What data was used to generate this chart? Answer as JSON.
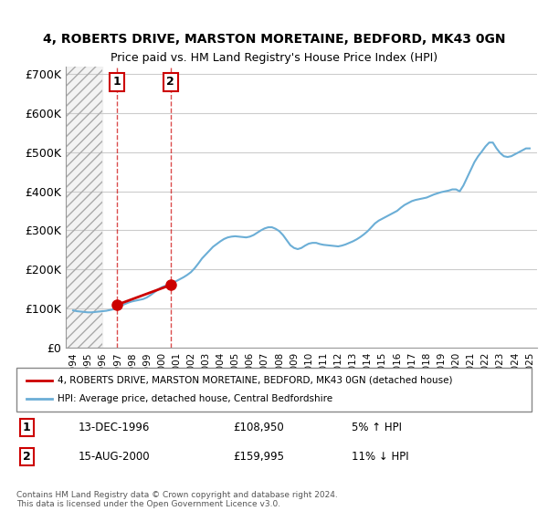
{
  "title": "4, ROBERTS DRIVE, MARSTON MORETAINE, BEDFORD, MK43 0GN",
  "subtitle": "Price paid vs. HM Land Registry's House Price Index (HPI)",
  "ylabel_ticks": [
    0,
    100000,
    200000,
    300000,
    400000,
    500000,
    600000,
    700000
  ],
  "ylabel_labels": [
    "£0",
    "£100K",
    "£200K",
    "£300K",
    "£400K",
    "£500K",
    "£600K",
    "£700K"
  ],
  "xlim_start": 1993.5,
  "xlim_end": 2025.5,
  "ylim_min": 0,
  "ylim_max": 720000,
  "hpi_color": "#6baed6",
  "price_color": "#cc0000",
  "hatch_color": "#d0d0d0",
  "transaction1": {
    "year": 1996.95,
    "price": 108950,
    "label": "1",
    "date": "13-DEC-1996",
    "price_str": "£108,950",
    "hpi_diff": "5% ↑ HPI"
  },
  "transaction2": {
    "year": 2000.62,
    "price": 159995,
    "label": "2",
    "date": "15-AUG-2000",
    "price_str": "£159,995",
    "hpi_diff": "11% ↓ HPI"
  },
  "legend_entry1": "4, ROBERTS DRIVE, MARSTON MORETAINE, BEDFORD, MK43 0GN (detached house)",
  "legend_entry2": "HPI: Average price, detached house, Central Bedfordshire",
  "copyright_text": "Contains HM Land Registry data © Crown copyright and database right 2024.\nThis data is licensed under the Open Government Licence v3.0.",
  "hpi_data": {
    "years": [
      1994.0,
      1994.25,
      1994.5,
      1994.75,
      1995.0,
      1995.25,
      1995.5,
      1995.75,
      1996.0,
      1996.25,
      1996.5,
      1996.75,
      1997.0,
      1997.25,
      1997.5,
      1997.75,
      1998.0,
      1998.25,
      1998.5,
      1998.75,
      1999.0,
      1999.25,
      1999.5,
      1999.75,
      2000.0,
      2000.25,
      2000.5,
      2000.75,
      2001.0,
      2001.25,
      2001.5,
      2001.75,
      2002.0,
      2002.25,
      2002.5,
      2002.75,
      2003.0,
      2003.25,
      2003.5,
      2003.75,
      2004.0,
      2004.25,
      2004.5,
      2004.75,
      2005.0,
      2005.25,
      2005.5,
      2005.75,
      2006.0,
      2006.25,
      2006.5,
      2006.75,
      2007.0,
      2007.25,
      2007.5,
      2007.75,
      2008.0,
      2008.25,
      2008.5,
      2008.75,
      2009.0,
      2009.25,
      2009.5,
      2009.75,
      2010.0,
      2010.25,
      2010.5,
      2010.75,
      2011.0,
      2011.25,
      2011.5,
      2011.75,
      2012.0,
      2012.25,
      2012.5,
      2012.75,
      2013.0,
      2013.25,
      2013.5,
      2013.75,
      2014.0,
      2014.25,
      2014.5,
      2014.75,
      2015.0,
      2015.25,
      2015.5,
      2015.75,
      2016.0,
      2016.25,
      2016.5,
      2016.75,
      2017.0,
      2017.25,
      2017.5,
      2017.75,
      2018.0,
      2018.25,
      2018.5,
      2018.75,
      2019.0,
      2019.25,
      2019.5,
      2019.75,
      2020.0,
      2020.25,
      2020.5,
      2020.75,
      2021.0,
      2021.25,
      2021.5,
      2021.75,
      2022.0,
      2022.25,
      2022.5,
      2022.75,
      2023.0,
      2023.25,
      2023.5,
      2023.75,
      2024.0,
      2024.25,
      2024.5,
      2024.75,
      2025.0
    ],
    "values": [
      95000,
      93000,
      92000,
      91000,
      90000,
      90000,
      91000,
      92000,
      93000,
      94000,
      96000,
      98000,
      102000,
      107000,
      111000,
      115000,
      118000,
      120000,
      122000,
      124000,
      128000,
      134000,
      141000,
      148000,
      154000,
      158000,
      162000,
      166000,
      170000,
      175000,
      180000,
      186000,
      193000,
      203000,
      215000,
      228000,
      238000,
      248000,
      258000,
      265000,
      272000,
      278000,
      282000,
      284000,
      285000,
      284000,
      283000,
      282000,
      284000,
      288000,
      294000,
      300000,
      305000,
      308000,
      308000,
      304000,
      298000,
      288000,
      275000,
      262000,
      255000,
      252000,
      255000,
      261000,
      266000,
      268000,
      268000,
      265000,
      263000,
      262000,
      261000,
      260000,
      259000,
      261000,
      264000,
      268000,
      272000,
      277000,
      283000,
      290000,
      298000,
      308000,
      318000,
      325000,
      330000,
      335000,
      340000,
      345000,
      350000,
      358000,
      365000,
      370000,
      375000,
      378000,
      380000,
      382000,
      384000,
      388000,
      392000,
      395000,
      398000,
      400000,
      402000,
      405000,
      405000,
      400000,
      415000,
      435000,
      455000,
      475000,
      490000,
      502000,
      515000,
      525000,
      525000,
      510000,
      498000,
      490000,
      488000,
      490000,
      495000,
      500000,
      505000,
      510000,
      510000
    ]
  },
  "price_line": {
    "years": [
      1996.95,
      2000.62
    ],
    "values": [
      108950,
      159995
    ]
  },
  "hatch_end_year": 1996.0,
  "xtick_years": [
    1994,
    1995,
    1996,
    1997,
    1998,
    1999,
    2000,
    2001,
    2002,
    2003,
    2004,
    2005,
    2006,
    2007,
    2008,
    2009,
    2010,
    2011,
    2012,
    2013,
    2014,
    2015,
    2016,
    2017,
    2018,
    2019,
    2020,
    2021,
    2022,
    2023,
    2024,
    2025
  ]
}
